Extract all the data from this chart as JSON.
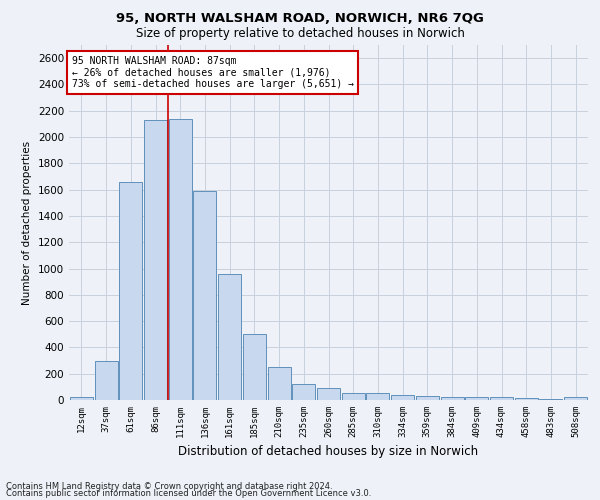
{
  "title": "95, NORTH WALSHAM ROAD, NORWICH, NR6 7QG",
  "subtitle": "Size of property relative to detached houses in Norwich",
  "xlabel": "Distribution of detached houses by size in Norwich",
  "ylabel": "Number of detached properties",
  "footnote1": "Contains HM Land Registry data © Crown copyright and database right 2024.",
  "footnote2": "Contains public sector information licensed under the Open Government Licence v3.0.",
  "annotation_title": "95 NORTH WALSHAM ROAD: 87sqm",
  "annotation_line1": "← 26% of detached houses are smaller (1,976)",
  "annotation_line2": "73% of semi-detached houses are larger (5,651) →",
  "bar_color": "#c8d8ee",
  "bar_edge_color": "#6090bb",
  "grid_color": "#c8d0dc",
  "annotation_box_color": "#cc0000",
  "vline_color": "#cc0000",
  "background_color": "#eef2f8",
  "categories": [
    "12sqm",
    "37sqm",
    "61sqm",
    "86sqm",
    "111sqm",
    "136sqm",
    "161sqm",
    "185sqm",
    "210sqm",
    "235sqm",
    "260sqm",
    "285sqm",
    "310sqm",
    "334sqm",
    "359sqm",
    "384sqm",
    "409sqm",
    "434sqm",
    "458sqm",
    "483sqm",
    "508sqm"
  ],
  "values": [
    25,
    300,
    1660,
    2130,
    2140,
    1590,
    960,
    505,
    250,
    120,
    95,
    50,
    50,
    35,
    28,
    22,
    20,
    22,
    18,
    5,
    22
  ],
  "ylim": [
    0,
    2700
  ],
  "yticks": [
    0,
    200,
    400,
    600,
    800,
    1000,
    1200,
    1400,
    1600,
    1800,
    2000,
    2200,
    2400,
    2600
  ],
  "vline_x_index": 3.5,
  "figsize": [
    6.0,
    5.0
  ],
  "dpi": 100
}
